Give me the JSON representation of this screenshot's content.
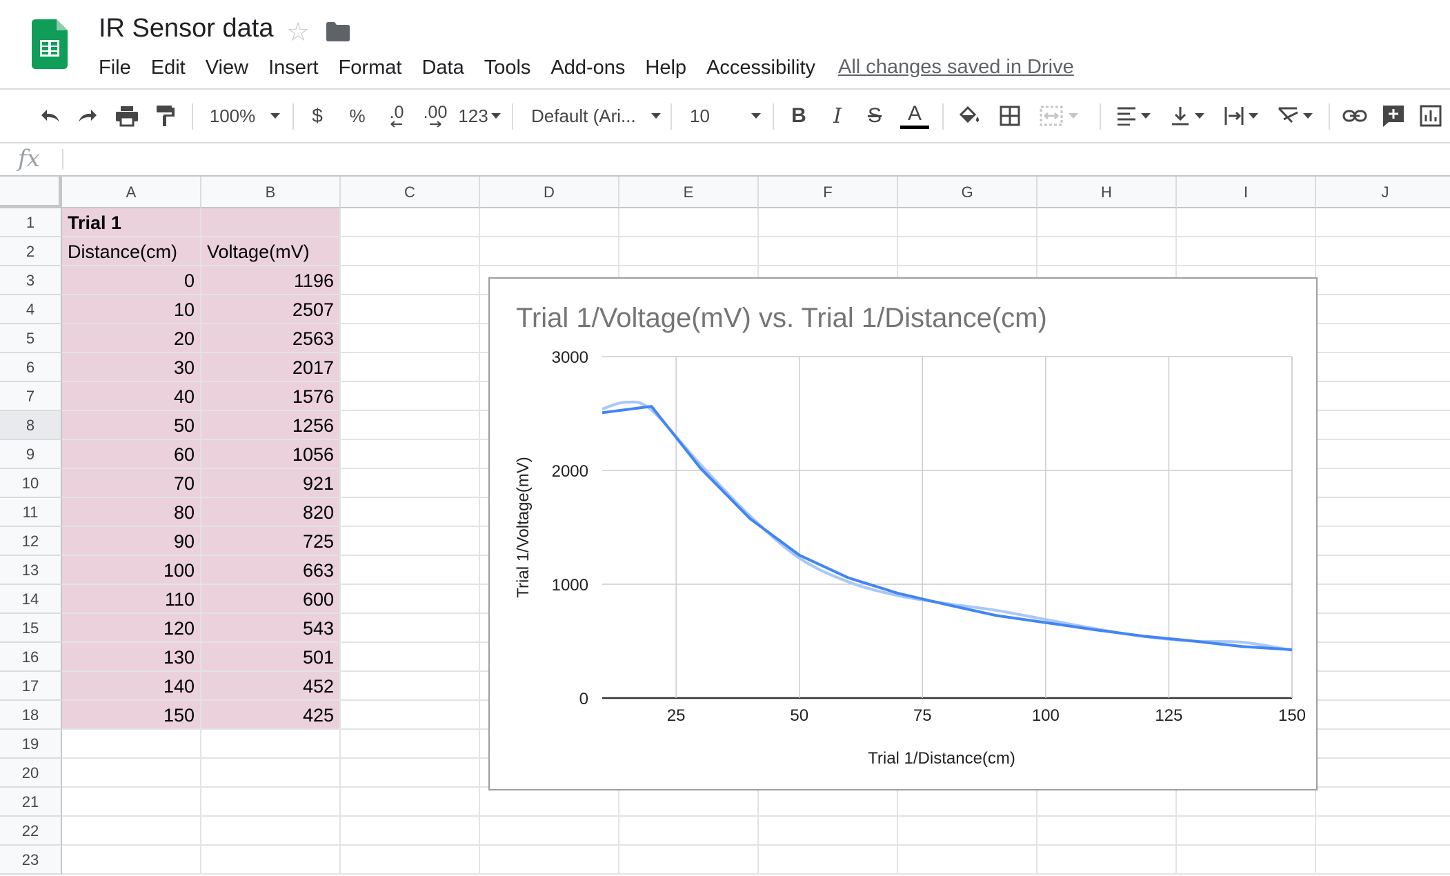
{
  "app": {
    "doc_title": "IR Sensor data",
    "menu": [
      "File",
      "Edit",
      "View",
      "Insert",
      "Format",
      "Data",
      "Tools",
      "Add-ons",
      "Help",
      "Accessibility"
    ],
    "save_status": "All changes saved in Drive"
  },
  "toolbar": {
    "zoom": "100%",
    "currency": "$",
    "percent": "%",
    "dec_decrease": ".0",
    "dec_increase": ".00",
    "more_formats": "123",
    "font": "Default (Ari...",
    "font_size": "10",
    "bold": "B",
    "italic": "I",
    "strike": "S",
    "text_color": "A"
  },
  "formula_bar": {
    "fx": "fx",
    "value": ""
  },
  "columns": [
    "A",
    "B",
    "C",
    "D",
    "E",
    "F",
    "G",
    "H",
    "I",
    "J"
  ],
  "rows": [
    "1",
    "2",
    "3",
    "4",
    "5",
    "6",
    "7",
    "8",
    "9",
    "10",
    "11",
    "12",
    "13",
    "14",
    "15",
    "16",
    "17",
    "18",
    "19",
    "20",
    "21",
    "22",
    "23"
  ],
  "cells": {
    "A1": "Trial 1",
    "A2": "Distance(cm)",
    "B2": "Voltage(mV)"
  },
  "table": [
    [
      "0",
      "1196"
    ],
    [
      "10",
      "2507"
    ],
    [
      "20",
      "2563"
    ],
    [
      "30",
      "2017"
    ],
    [
      "40",
      "1576"
    ],
    [
      "50",
      "1256"
    ],
    [
      "60",
      "1056"
    ],
    [
      "70",
      "921"
    ],
    [
      "80",
      "820"
    ],
    [
      "90",
      "725"
    ],
    [
      "100",
      "663"
    ],
    [
      "110",
      "600"
    ],
    [
      "120",
      "543"
    ],
    [
      "130",
      "501"
    ],
    [
      "140",
      "452"
    ],
    [
      "150",
      "425"
    ]
  ],
  "colors": {
    "highlight": "#ead1dc",
    "sheets_green": "#0f9d58",
    "series_line": "#4285f4",
    "trendline": "#a8c7fa"
  },
  "chart_data": {
    "type": "line",
    "title": "Trial 1/Voltage(mV) vs. Trial 1/Distance(cm)",
    "xlabel": "Trial 1/Distance(cm)",
    "ylabel": "Trial 1/Voltage(mV)",
    "xlim": [
      10,
      150
    ],
    "ylim": [
      0,
      3000
    ],
    "x_ticks": [
      25,
      50,
      75,
      100,
      125,
      150
    ],
    "y_ticks": [
      0,
      1000,
      2000,
      3000
    ],
    "grid": true,
    "legend": "none",
    "x": [
      10,
      20,
      30,
      40,
      50,
      60,
      70,
      80,
      90,
      100,
      110,
      120,
      130,
      140,
      150
    ],
    "series": [
      {
        "values": [
          2507,
          2563,
          2017,
          1576,
          1256,
          1056,
          921,
          820,
          725,
          663,
          600,
          543,
          501,
          452,
          425
        ]
      }
    ],
    "trendline": {
      "x": [
        10,
        15,
        20,
        30,
        40,
        50,
        60,
        70,
        80,
        90,
        100,
        110,
        120,
        130,
        140,
        150
      ],
      "y": [
        2540,
        2600,
        2530,
        2050,
        1600,
        1230,
        1020,
        900,
        830,
        770,
        690,
        610,
        540,
        500,
        490,
        420
      ]
    }
  }
}
